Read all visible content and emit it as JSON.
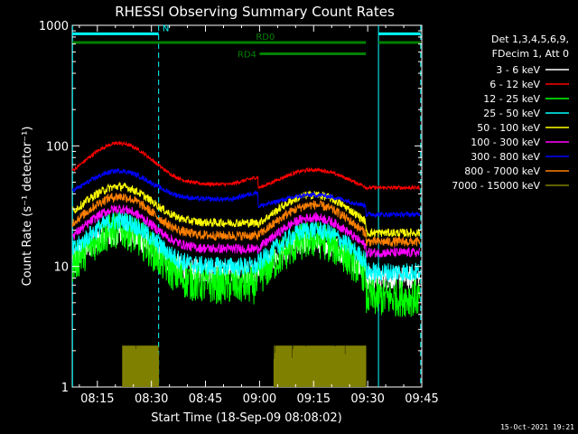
{
  "chart_data": {
    "type": "line",
    "title": "RHESSI Observing Summary Count Rates",
    "xlabel": "Start Time (18-Sep-09 08:08:02)",
    "ylabel": "Count Rate (s⁻¹ detector⁻¹)",
    "yscale": "log",
    "ylim": [
      1,
      1000
    ],
    "xlim_minutes_after_0800": [
      8.03,
      105.0
    ],
    "x_ticks": [
      {
        "label": "08:15",
        "minute": 15
      },
      {
        "label": "08:30",
        "minute": 30
      },
      {
        "label": "08:45",
        "minute": 45
      },
      {
        "label": "09:00",
        "minute": 60
      },
      {
        "label": "09:15",
        "minute": 75
      },
      {
        "label": "09:30",
        "minute": 90
      },
      {
        "label": "09:45",
        "minute": 105
      }
    ],
    "y_ticks": [
      {
        "label": "1",
        "value": 1
      },
      {
        "label": "10",
        "value": 10
      },
      {
        "label": "100",
        "value": 100
      },
      {
        "label": "1000",
        "value": 1000
      }
    ],
    "legend_title_lines": [
      "Det 1,3,4,5,6,9,",
      "FDecim 1, Att 0"
    ],
    "legend_position": "right",
    "series": [
      {
        "name": "3 - 6 keV",
        "color": "#ffffff",
        "shape": "dip",
        "base": 9.0,
        "peak": 19,
        "late": 8.0,
        "noise": 0.1
      },
      {
        "name": "6 - 12 keV",
        "color": "#ff0000",
        "shape": "flare",
        "base": 48,
        "peak": 105,
        "late": 45,
        "noise": 0.015
      },
      {
        "name": "12 - 25 keV",
        "color": "#00ff00",
        "shape": "dip",
        "base": 7.0,
        "peak": 20,
        "late": 5.5,
        "noise": 0.16
      },
      {
        "name": "25 - 50 keV",
        "color": "#00ffff",
        "shape": "dip",
        "base": 10.0,
        "peak": 24,
        "late": 9.0,
        "noise": 0.08
      },
      {
        "name": "50 - 100 keV",
        "color": "#ffff00",
        "shape": "dip",
        "base": 23,
        "peak": 46,
        "late": 19,
        "noise": 0.035
      },
      {
        "name": "100 - 300 keV",
        "color": "#ff00ff",
        "shape": "dip",
        "base": 14,
        "peak": 30,
        "late": 13,
        "noise": 0.04
      },
      {
        "name": "300 - 800 keV",
        "color": "#0000ff",
        "shape": "flare",
        "base": 36,
        "peak": 62,
        "late": 27,
        "noise": 0.02
      },
      {
        "name": "800 - 7000 keV",
        "color": "#ff8000",
        "shape": "dip",
        "base": 18,
        "peak": 38,
        "late": 16,
        "noise": 0.04
      },
      {
        "name": "7000 - 15000 keV",
        "color": "#808000",
        "shape": "saa",
        "base": 1.0,
        "peak": 2.2,
        "late": 1.0,
        "noise": 0.2
      }
    ],
    "flags": [
      {
        "label": "N",
        "color": "#00ffff",
        "segments": [
          [
            8.1,
            32.0
          ],
          [
            93.0,
            104.7
          ]
        ],
        "level": 850
      },
      {
        "label": "RD0",
        "color": "#008000",
        "segments": [
          [
            8.1,
            60.0
          ],
          [
            60.0,
            89.5
          ],
          [
            93.0,
            104.7
          ]
        ],
        "level": 720
      },
      {
        "label": "RD4",
        "color": "#008000",
        "segments": [
          [
            60.0,
            89.5
          ]
        ],
        "level": 580
      }
    ],
    "vertical_markers": [
      {
        "minute": 8.1,
        "color": "#00ffff",
        "style": "solid"
      },
      {
        "minute": 32.0,
        "color": "#00ffff",
        "style": "dashed"
      },
      {
        "minute": 93.0,
        "color": "#00ffff",
        "style": "solid"
      },
      {
        "minute": 104.7,
        "color": "#00ffff",
        "style": "dashed"
      }
    ],
    "saa_intervals": [
      [
        22.0,
        32.0
      ],
      [
        64.0,
        89.5
      ]
    ],
    "footer_date": "15-Oct-2021 19:21",
    "grid": false
  }
}
